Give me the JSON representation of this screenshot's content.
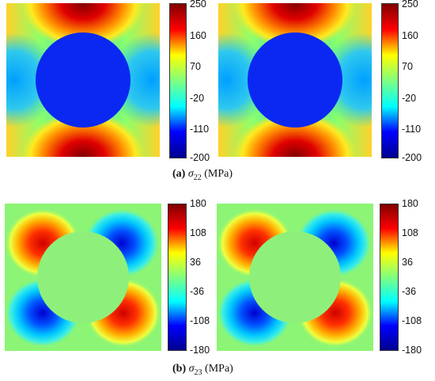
{
  "figure": {
    "row_a": {
      "caption_label": "a",
      "caption_symbol": "σ",
      "caption_subscript": "22",
      "caption_unit": "(MPa)",
      "colorbar_ticks": [
        "250",
        "160",
        "70",
        "-20",
        "-110",
        "-200"
      ]
    },
    "row_b": {
      "caption_label": "b",
      "caption_symbol": "σ",
      "caption_subscript": "23",
      "caption_unit": "(MPa)",
      "colorbar_ticks": [
        "180",
        "108",
        "36",
        "-36",
        "-108",
        "-180"
      ]
    },
    "colormap": [
      "#00008f",
      "#0000ff",
      "#00ffff",
      "#80ff80",
      "#ffff00",
      "#ff0000",
      "#800000"
    ]
  }
}
